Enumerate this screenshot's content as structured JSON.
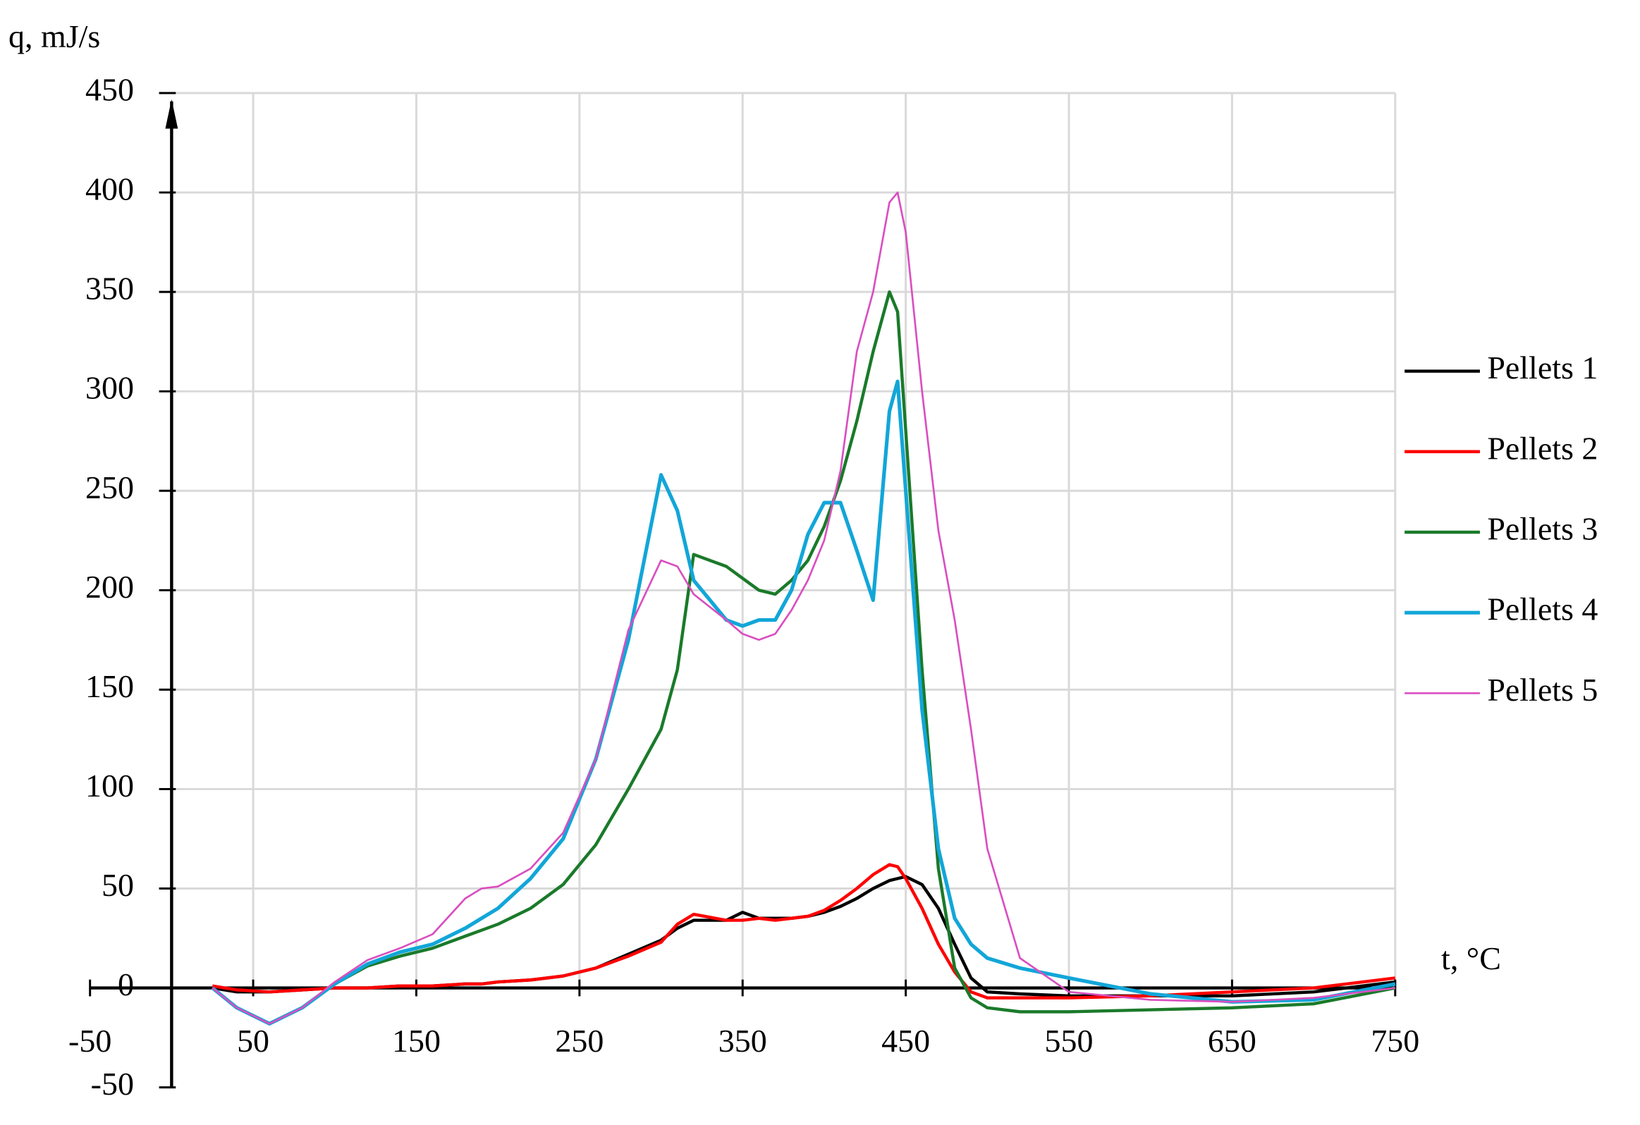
{
  "chart_data": {
    "type": "line",
    "y_label": "q, mJ/s",
    "x_label": "t, °C",
    "x": [
      25,
      40,
      60,
      80,
      100,
      120,
      140,
      160,
      180,
      190,
      200,
      220,
      240,
      260,
      280,
      300,
      310,
      320,
      340,
      350,
      360,
      370,
      380,
      390,
      400,
      410,
      420,
      430,
      440,
      445,
      450,
      460,
      470,
      480,
      490,
      500,
      520,
      550,
      600,
      650,
      700,
      750
    ],
    "series": [
      {
        "name": "Pellets 1",
        "color": "#000000",
        "width": 3,
        "values": [
          0,
          -2,
          -2,
          -1,
          0,
          0,
          1,
          1,
          2,
          2,
          3,
          4,
          6,
          10,
          17,
          24,
          30,
          34,
          34,
          38,
          35,
          35,
          35,
          36,
          38,
          41,
          45,
          50,
          54,
          55,
          56,
          52,
          40,
          22,
          5,
          -2,
          -3,
          -4,
          -4,
          -4,
          -2,
          3
        ]
      },
      {
        "name": "Pellets 2",
        "color": "#ff0000",
        "width": 3,
        "values": [
          1,
          -1,
          -2,
          -1,
          0,
          0,
          1,
          1,
          2,
          2,
          3,
          4,
          6,
          10,
          16,
          23,
          32,
          37,
          34,
          34,
          35,
          34,
          35,
          36,
          39,
          44,
          50,
          57,
          62,
          61,
          55,
          40,
          22,
          8,
          -2,
          -5,
          -5,
          -5,
          -4,
          -2,
          0,
          5
        ]
      },
      {
        "name": "Pellets 3",
        "color": "#1a7a2a",
        "width": 3,
        "values": [
          0,
          -10,
          -18,
          -10,
          2,
          11,
          16,
          20,
          26,
          29,
          32,
          40,
          52,
          72,
          100,
          130,
          160,
          218,
          212,
          206,
          200,
          198,
          205,
          215,
          232,
          255,
          285,
          320,
          350,
          340,
          280,
          160,
          60,
          10,
          -5,
          -10,
          -12,
          -12,
          -11,
          -10,
          -8,
          0
        ]
      },
      {
        "name": "Pellets 4",
        "color": "#12a6d8",
        "width": 3.5,
        "values": [
          0,
          -10,
          -18,
          -10,
          2,
          12,
          18,
          22,
          30,
          35,
          40,
          55,
          75,
          115,
          175,
          258,
          240,
          205,
          185,
          182,
          185,
          185,
          200,
          228,
          244,
          244,
          220,
          195,
          290,
          305,
          250,
          140,
          70,
          35,
          22,
          15,
          10,
          5,
          -3,
          -7,
          -6,
          2
        ]
      },
      {
        "name": "Pellets 5",
        "color": "#d94fc0",
        "width": 1.8,
        "values": [
          0,
          -10,
          -18,
          -10,
          3,
          14,
          20,
          27,
          45,
          50,
          51,
          60,
          78,
          115,
          180,
          215,
          212,
          198,
          185,
          178,
          175,
          178,
          190,
          205,
          225,
          260,
          320,
          350,
          395,
          400,
          380,
          300,
          230,
          185,
          130,
          70,
          15,
          -2,
          -6,
          -7,
          -5,
          0
        ]
      }
    ],
    "xlim": [
      -50,
      750
    ],
    "ylim": [
      -50,
      450
    ],
    "xticks": [
      -50,
      50,
      150,
      250,
      350,
      450,
      550,
      650,
      750
    ],
    "yticks": [
      -50,
      0,
      50,
      100,
      150,
      200,
      250,
      300,
      350,
      400,
      450
    ],
    "grid": true,
    "legend": "right"
  }
}
